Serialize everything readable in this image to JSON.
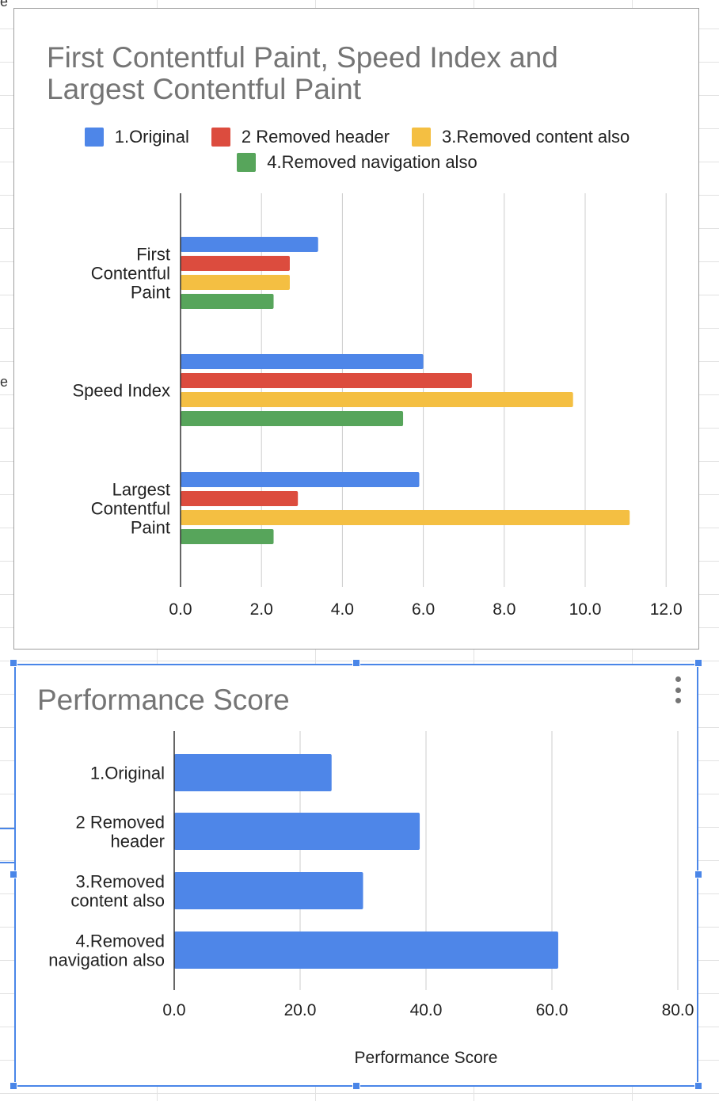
{
  "charts": [
    {
      "title": "First Contentful Paint, Speed Index and\nLargest Contentful Paint",
      "chart_data": {
        "type": "bar",
        "orientation": "horizontal",
        "title": "First Contentful Paint, Speed Index and Largest Contentful Paint",
        "categories": [
          "First Contentful Paint",
          "Speed Index",
          "Largest Contentful Paint"
        ],
        "category_labels": [
          [
            "First",
            "Contentful",
            "Paint"
          ],
          [
            "Speed Index"
          ],
          [
            "Largest",
            "Contentful",
            "Paint"
          ]
        ],
        "series": [
          {
            "name": "1.Original",
            "color": "#4e86e8",
            "values": [
              3.4,
              6.0,
              5.9
            ]
          },
          {
            "name": "2 Removed header",
            "color": "#dc4c3e",
            "values": [
              2.7,
              7.2,
              2.9
            ]
          },
          {
            "name": "3.Removed content also",
            "color": "#f4bf42",
            "values": [
              2.7,
              9.7,
              11.1
            ]
          },
          {
            "name": "4.Removed navigation also",
            "color": "#57a55b",
            "values": [
              2.3,
              5.5,
              2.3
            ]
          }
        ],
        "xlim": [
          0,
          12
        ],
        "xticks": [
          "0.0",
          "2.0",
          "4.0",
          "6.0",
          "8.0",
          "10.0",
          "12.0"
        ],
        "grid": true,
        "legend": "top"
      }
    },
    {
      "title": "Performance Score",
      "chart_data": {
        "type": "bar",
        "orientation": "horizontal",
        "title": "Performance Score",
        "categories": [
          "1.Original",
          "2 Removed header",
          "3.Removed content also",
          "4.Removed navigation also"
        ],
        "category_labels": [
          [
            "1.Original"
          ],
          [
            "2 Removed",
            "header"
          ],
          [
            "3.Removed",
            "content also"
          ],
          [
            "4.Removed",
            "navigation also"
          ]
        ],
        "series": [
          {
            "color": "#4e86e8",
            "values": [
              25,
              39,
              30,
              61
            ]
          }
        ],
        "xlim": [
          0,
          80
        ],
        "xticks": [
          "0.0",
          "20.0",
          "40.0",
          "60.0",
          "80.0"
        ],
        "xlabel": "Performance Score",
        "grid": true,
        "legend": "none"
      }
    }
  ]
}
